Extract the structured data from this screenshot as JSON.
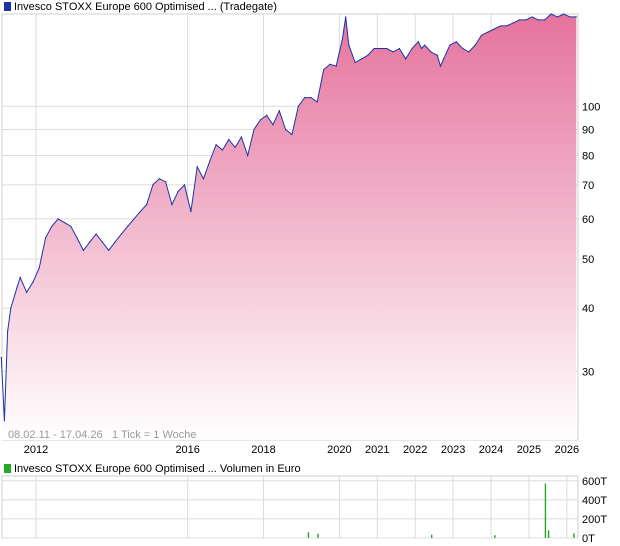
{
  "colors": {
    "price_line": "#1a35a8",
    "area_top": "#e5739c",
    "area_bottom": "#ffffff",
    "grid": "#dcdcdc",
    "volume_green": "#22aa22",
    "volume_red": "#cc2222",
    "legend_price_swatch": "#1a35a8",
    "legend_volume_swatch": "#22aa22"
  },
  "chart_data": [
    {
      "type": "area",
      "title": "Invesco STOXX Europe 600 Optimised ... (Tradegate)",
      "y_scale": "log",
      "ylim": [
        22,
        152
      ],
      "y_ticks": [
        "30",
        "40",
        "50",
        "60",
        "70",
        "80",
        "90",
        "100"
      ],
      "x_ticks": [
        "2012",
        "2016",
        "2018",
        "2020",
        "2021",
        "2022",
        "2023",
        "2024",
        "2025",
        "2026"
      ],
      "date_range_label": "08.02.11 - 17.04.26",
      "tick_label": "1 Tick = 1 Woche",
      "x_range": [
        "2011-02-08",
        "2026-04-17"
      ],
      "series": [
        {
          "x": [
            "2011-02",
            "2011-03",
            "2011-04",
            "2011-05",
            "2011-07",
            "2011-08",
            "2011-10",
            "2011-12",
            "2012-02",
            "2012-04",
            "2012-06",
            "2012-08",
            "2012-10",
            "2012-12",
            "2013-02",
            "2013-04",
            "2013-06",
            "2013-08",
            "2013-10",
            "2013-12",
            "2014-02",
            "2014-04",
            "2014-06",
            "2014-08",
            "2014-10",
            "2014-12",
            "2015-02",
            "2015-04",
            "2015-06",
            "2015-08",
            "2015-10",
            "2015-12",
            "2016-02",
            "2016-04",
            "2016-06",
            "2016-08",
            "2016-10",
            "2016-12",
            "2017-02",
            "2017-04",
            "2017-06",
            "2017-08",
            "2017-10",
            "2017-12",
            "2018-02",
            "2018-04",
            "2018-06",
            "2018-08",
            "2018-10",
            "2018-12",
            "2019-02",
            "2019-04",
            "2019-06",
            "2019-08",
            "2019-10",
            "2019-12",
            "2020-02",
            "2020-03",
            "2020-04",
            "2020-06",
            "2020-08",
            "2020-10",
            "2020-12",
            "2021-02",
            "2021-04",
            "2021-06",
            "2021-08",
            "2021-10",
            "2021-12",
            "2022-02",
            "2022-03",
            "2022-04",
            "2022-06",
            "2022-08",
            "2022-09",
            "2022-10",
            "2022-12",
            "2023-02",
            "2023-04",
            "2023-06",
            "2023-08",
            "2023-10",
            "2023-12",
            "2024-02",
            "2024-04",
            "2024-06",
            "2024-08",
            "2024-10",
            "2024-12",
            "2025-02",
            "2025-04",
            "2025-06",
            "2025-08",
            "2025-10",
            "2025-12",
            "2026-02",
            "2026-04"
          ],
          "values": [
            32,
            24,
            36,
            40,
            44,
            46,
            43,
            45,
            48,
            55,
            58,
            60,
            59,
            58,
            55,
            52,
            54,
            56,
            54,
            52,
            54,
            56,
            58,
            60,
            62,
            64,
            70,
            72,
            71,
            64,
            68,
            70,
            62,
            76,
            72,
            78,
            84,
            82,
            86,
            83,
            87,
            80,
            90,
            94,
            96,
            92,
            98,
            90,
            88,
            100,
            104,
            104,
            102,
            118,
            121,
            120,
            136,
            150,
            132,
            122,
            124,
            126,
            130,
            130,
            130,
            128,
            130,
            124,
            130,
            134,
            130,
            132,
            128,
            126,
            120,
            124,
            132,
            134,
            130,
            128,
            132,
            138,
            140,
            142,
            144,
            144,
            146,
            148,
            148,
            150,
            148,
            148,
            152,
            150,
            152,
            150,
            150
          ]
        }
      ]
    },
    {
      "type": "bar",
      "title": "Invesco STOXX Europe 600 Optimised ... Volumen in Euro",
      "y_ticks": [
        "0T",
        "200T",
        "400T",
        "600T"
      ],
      "ylim": [
        0,
        650
      ],
      "x_range": [
        "2011-02-08",
        "2026-04-17"
      ],
      "series": [
        {
          "name": "Volumen in Euro",
          "x": [
            "2019-03",
            "2019-06",
            "2022-06",
            "2024-02",
            "2025-06",
            "2025-07",
            "2026-03"
          ],
          "values": [
            60,
            45,
            35,
            30,
            570,
            80,
            50
          ]
        }
      ]
    }
  ]
}
